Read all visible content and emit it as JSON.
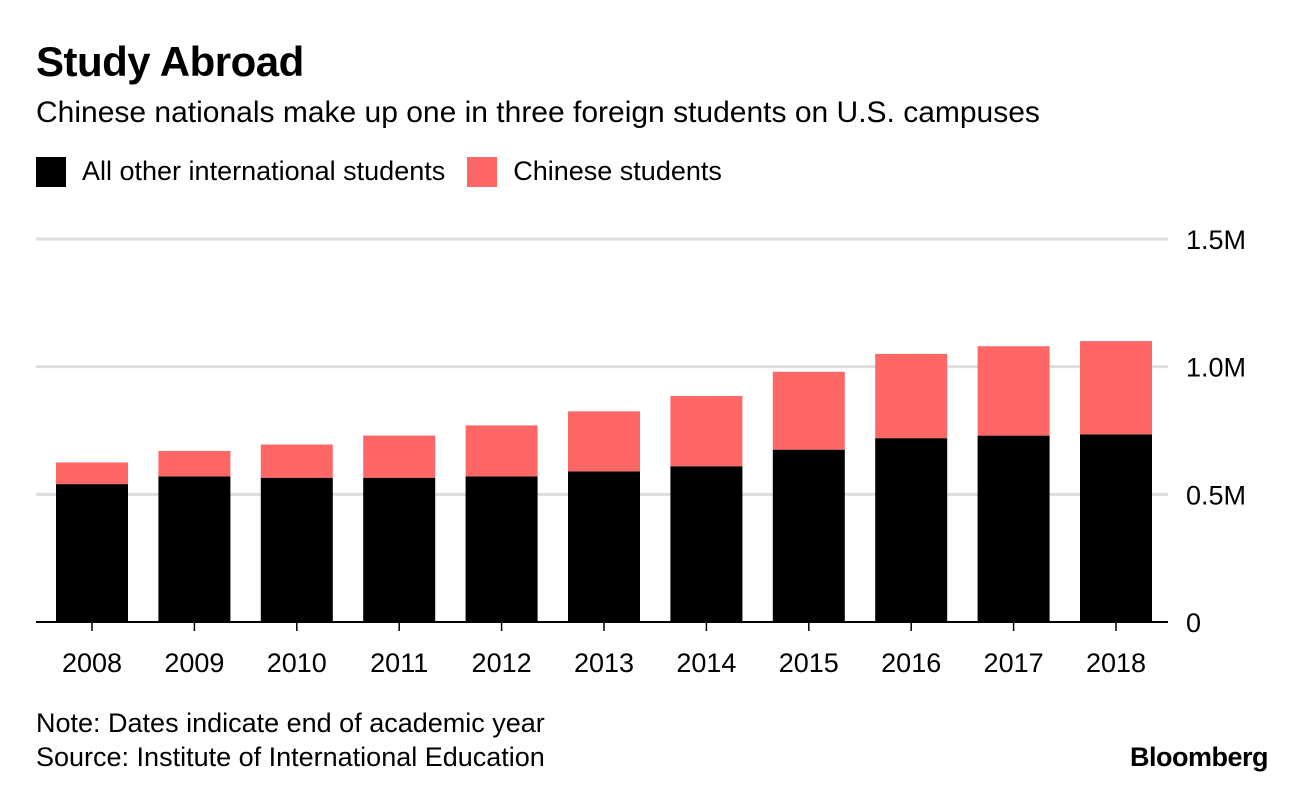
{
  "header": {
    "title": "Study Abroad",
    "subtitle": "Chinese nationals make up one in three foreign students on U.S. campuses"
  },
  "legend": [
    {
      "label": "All other international students",
      "color": "#000000"
    },
    {
      "label": "Chinese students",
      "color": "#ff6666"
    }
  ],
  "footer": {
    "note": "Note: Dates indicate end of academic year",
    "source": "Source: Institute of International Education",
    "brand": "Bloomberg"
  },
  "chart_data": {
    "type": "bar",
    "stacked": true,
    "title": "Study Abroad",
    "xlabel": "",
    "ylabel": "",
    "categories": [
      "2008",
      "2009",
      "2010",
      "2011",
      "2012",
      "2013",
      "2014",
      "2015",
      "2016",
      "2017",
      "2018"
    ],
    "series": [
      {
        "name": "All other international students",
        "color": "#000000",
        "values": [
          0.54,
          0.57,
          0.565,
          0.565,
          0.57,
          0.59,
          0.61,
          0.675,
          0.72,
          0.73,
          0.735
        ]
      },
      {
        "name": "Chinese students",
        "color": "#ff6666",
        "values": [
          0.085,
          0.1,
          0.13,
          0.165,
          0.2,
          0.235,
          0.275,
          0.305,
          0.33,
          0.35,
          0.365
        ]
      }
    ],
    "ylim": [
      0,
      1.5
    ],
    "yticks": [
      0,
      0.5,
      1.0,
      1.5
    ],
    "ytick_labels": [
      "0",
      "0.5M",
      "1.0M",
      "1.5M"
    ],
    "grid": true,
    "yaxis_side": "right",
    "legend_position": "top-left"
  }
}
